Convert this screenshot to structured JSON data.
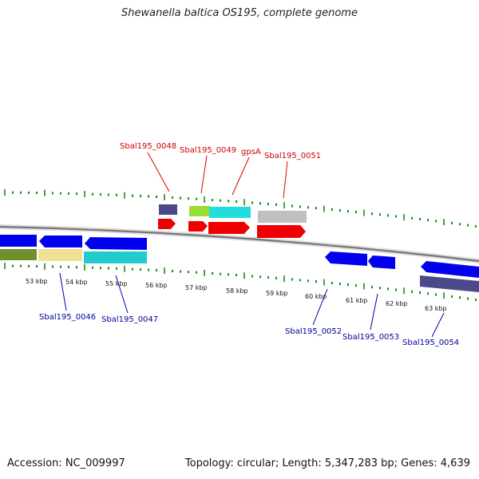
{
  "title": "Shewanella baltica OS195, complete genome",
  "accession_text": "Accession: NC_009997",
  "summary_text": "Topology: circular; Length: 5,347,283 bp; Genes: 4,639",
  "colors": {
    "forward_label": "#cc0000",
    "reverse_label": "#000099",
    "tick": "#1a8a1a",
    "backbone": "#777777"
  },
  "scale_labels": [
    "53 kbp",
    "54 kbp",
    "55 kbp",
    "56 kbp",
    "57 kbp",
    "58 kbp",
    "59 kbp",
    "60 kbp",
    "61 kbp",
    "62 kbp",
    "63 kbp"
  ],
  "gene_labels_forward": [
    "Sbal195_0048",
    "Sbal195_0049",
    "gpsA",
    "Sbal195_0051"
  ],
  "gene_labels_reverse": [
    "Sbal195_0046",
    "Sbal195_0047",
    "Sbal195_0052",
    "Sbal195_0053",
    "Sbal195_0054"
  ]
}
